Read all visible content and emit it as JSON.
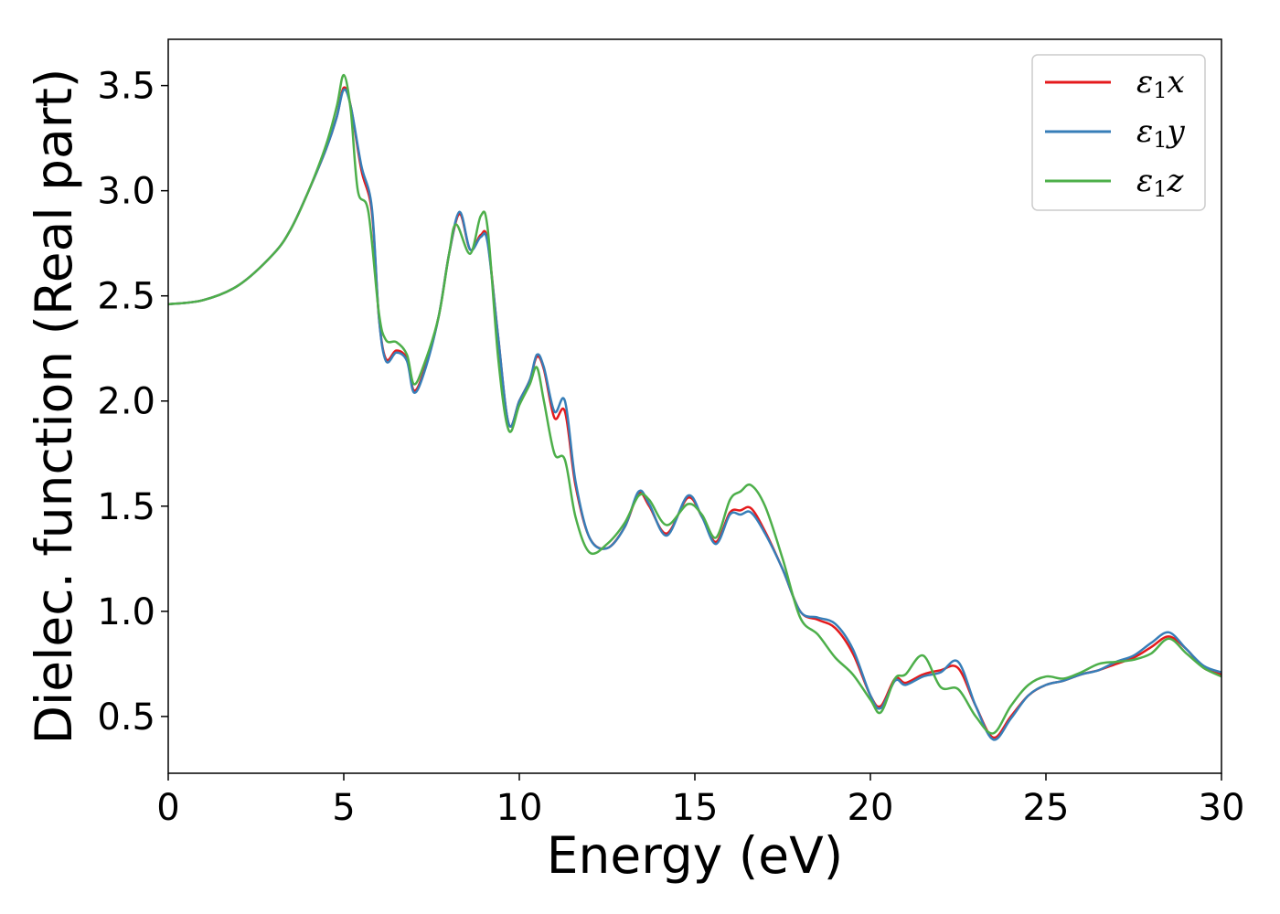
{
  "chart_data": {
    "type": "line",
    "title": "",
    "xlabel": "Energy (eV)",
    "ylabel": "Dielec. function (Real part)",
    "xlim": [
      0,
      30
    ],
    "ylim": [
      0.23,
      3.72
    ],
    "xticks": [
      0,
      5,
      10,
      15,
      20,
      25,
      30
    ],
    "yticks": [
      0.5,
      1.0,
      1.5,
      2.0,
      2.5,
      3.0,
      3.5
    ],
    "xtick_labels": [
      "0",
      "5",
      "10",
      "15",
      "20",
      "25",
      "30"
    ],
    "ytick_labels": [
      "0.5",
      "1.0",
      "1.5",
      "2.0",
      "2.5",
      "3.0",
      "3.5"
    ],
    "grid": false,
    "legend_position": "top-right",
    "series": [
      {
        "name": "ε1x",
        "legend": {
          "base": "ε",
          "sub": "1",
          "var": "x"
        },
        "color": "#e41a1c",
        "points": [
          [
            0,
            2.46
          ],
          [
            1,
            2.48
          ],
          [
            2,
            2.55
          ],
          [
            3,
            2.7
          ],
          [
            3.5,
            2.82
          ],
          [
            4,
            3.0
          ],
          [
            4.5,
            3.2
          ],
          [
            4.8,
            3.35
          ],
          [
            5.0,
            3.49
          ],
          [
            5.2,
            3.4
          ],
          [
            5.5,
            3.1
          ],
          [
            5.8,
            2.9
          ],
          [
            6.0,
            2.4
          ],
          [
            6.2,
            2.2
          ],
          [
            6.5,
            2.24
          ],
          [
            6.8,
            2.2
          ],
          [
            7.0,
            2.05
          ],
          [
            7.3,
            2.15
          ],
          [
            7.7,
            2.4
          ],
          [
            8.0,
            2.7
          ],
          [
            8.3,
            2.89
          ],
          [
            8.6,
            2.72
          ],
          [
            8.9,
            2.79
          ],
          [
            9.1,
            2.76
          ],
          [
            9.4,
            2.3
          ],
          [
            9.7,
            1.89
          ],
          [
            10.0,
            2.0
          ],
          [
            10.3,
            2.1
          ],
          [
            10.5,
            2.21
          ],
          [
            10.7,
            2.15
          ],
          [
            11.0,
            1.92
          ],
          [
            11.3,
            1.95
          ],
          [
            11.6,
            1.6
          ],
          [
            12.0,
            1.35
          ],
          [
            12.5,
            1.3
          ],
          [
            13.0,
            1.4
          ],
          [
            13.4,
            1.56
          ],
          [
            13.7,
            1.5
          ],
          [
            14.2,
            1.37
          ],
          [
            14.8,
            1.54
          ],
          [
            15.2,
            1.45
          ],
          [
            15.6,
            1.33
          ],
          [
            16.0,
            1.47
          ],
          [
            16.3,
            1.48
          ],
          [
            16.6,
            1.49
          ],
          [
            17.0,
            1.38
          ],
          [
            17.5,
            1.2
          ],
          [
            18.0,
            1.0
          ],
          [
            18.5,
            0.96
          ],
          [
            19.0,
            0.92
          ],
          [
            19.5,
            0.8
          ],
          [
            20.0,
            0.6
          ],
          [
            20.3,
            0.55
          ],
          [
            20.7,
            0.68
          ],
          [
            21.0,
            0.66
          ],
          [
            21.5,
            0.7
          ],
          [
            22.0,
            0.72
          ],
          [
            22.5,
            0.73
          ],
          [
            23.0,
            0.55
          ],
          [
            23.5,
            0.4
          ],
          [
            24.0,
            0.5
          ],
          [
            24.5,
            0.6
          ],
          [
            25.0,
            0.65
          ],
          [
            25.5,
            0.67
          ],
          [
            26.0,
            0.7
          ],
          [
            26.5,
            0.72
          ],
          [
            27.0,
            0.75
          ],
          [
            27.5,
            0.78
          ],
          [
            28.0,
            0.83
          ],
          [
            28.5,
            0.88
          ],
          [
            29.0,
            0.82
          ],
          [
            29.5,
            0.73
          ],
          [
            30.0,
            0.7
          ]
        ]
      },
      {
        "name": "ε1y",
        "legend": {
          "base": "ε",
          "sub": "1",
          "var": "y"
        },
        "color": "#377eb8",
        "points": [
          [
            0,
            2.46
          ],
          [
            1,
            2.48
          ],
          [
            2,
            2.55
          ],
          [
            3,
            2.7
          ],
          [
            3.5,
            2.82
          ],
          [
            4,
            3.0
          ],
          [
            4.5,
            3.2
          ],
          [
            4.8,
            3.35
          ],
          [
            5.0,
            3.48
          ],
          [
            5.2,
            3.4
          ],
          [
            5.5,
            3.12
          ],
          [
            5.8,
            2.92
          ],
          [
            6.0,
            2.4
          ],
          [
            6.2,
            2.19
          ],
          [
            6.5,
            2.23
          ],
          [
            6.8,
            2.19
          ],
          [
            7.0,
            2.04
          ],
          [
            7.3,
            2.14
          ],
          [
            7.7,
            2.4
          ],
          [
            8.0,
            2.7
          ],
          [
            8.3,
            2.9
          ],
          [
            8.6,
            2.72
          ],
          [
            8.9,
            2.78
          ],
          [
            9.1,
            2.75
          ],
          [
            9.4,
            2.3
          ],
          [
            9.7,
            1.89
          ],
          [
            10.0,
            2.0
          ],
          [
            10.3,
            2.1
          ],
          [
            10.5,
            2.22
          ],
          [
            10.7,
            2.16
          ],
          [
            11.0,
            1.95
          ],
          [
            11.3,
            2.0
          ],
          [
            11.6,
            1.62
          ],
          [
            12.0,
            1.35
          ],
          [
            12.5,
            1.3
          ],
          [
            13.0,
            1.4
          ],
          [
            13.4,
            1.57
          ],
          [
            13.7,
            1.51
          ],
          [
            14.2,
            1.36
          ],
          [
            14.8,
            1.55
          ],
          [
            15.2,
            1.45
          ],
          [
            15.6,
            1.32
          ],
          [
            16.0,
            1.46
          ],
          [
            16.3,
            1.46
          ],
          [
            16.6,
            1.47
          ],
          [
            17.0,
            1.37
          ],
          [
            17.5,
            1.2
          ],
          [
            18.0,
            1.0
          ],
          [
            18.5,
            0.97
          ],
          [
            19.0,
            0.94
          ],
          [
            19.5,
            0.82
          ],
          [
            20.0,
            0.6
          ],
          [
            20.3,
            0.54
          ],
          [
            20.7,
            0.67
          ],
          [
            21.0,
            0.65
          ],
          [
            21.5,
            0.69
          ],
          [
            22.0,
            0.71
          ],
          [
            22.5,
            0.76
          ],
          [
            23.0,
            0.55
          ],
          [
            23.5,
            0.39
          ],
          [
            24.0,
            0.49
          ],
          [
            24.5,
            0.6
          ],
          [
            25.0,
            0.65
          ],
          [
            25.5,
            0.67
          ],
          [
            26.0,
            0.7
          ],
          [
            26.5,
            0.72
          ],
          [
            27.0,
            0.76
          ],
          [
            27.5,
            0.79
          ],
          [
            28.0,
            0.85
          ],
          [
            28.5,
            0.9
          ],
          [
            29.0,
            0.82
          ],
          [
            29.5,
            0.74
          ],
          [
            30.0,
            0.71
          ]
        ]
      },
      {
        "name": "ε1z",
        "legend": {
          "base": "ε",
          "sub": "1",
          "var": "z"
        },
        "color": "#4daf4a",
        "points": [
          [
            0,
            2.46
          ],
          [
            1,
            2.48
          ],
          [
            2,
            2.55
          ],
          [
            3,
            2.7
          ],
          [
            3.5,
            2.82
          ],
          [
            4,
            3.0
          ],
          [
            4.5,
            3.22
          ],
          [
            4.8,
            3.4
          ],
          [
            5.0,
            3.55
          ],
          [
            5.2,
            3.38
          ],
          [
            5.4,
            3.0
          ],
          [
            5.7,
            2.9
          ],
          [
            6.0,
            2.42
          ],
          [
            6.2,
            2.29
          ],
          [
            6.5,
            2.28
          ],
          [
            6.8,
            2.22
          ],
          [
            7.0,
            2.08
          ],
          [
            7.3,
            2.18
          ],
          [
            7.7,
            2.4
          ],
          [
            8.0,
            2.7
          ],
          [
            8.2,
            2.84
          ],
          [
            8.6,
            2.7
          ],
          [
            8.9,
            2.88
          ],
          [
            9.1,
            2.82
          ],
          [
            9.4,
            2.2
          ],
          [
            9.7,
            1.86
          ],
          [
            10.0,
            1.98
          ],
          [
            10.3,
            2.08
          ],
          [
            10.5,
            2.16
          ],
          [
            10.7,
            2.0
          ],
          [
            11.0,
            1.75
          ],
          [
            11.3,
            1.72
          ],
          [
            11.6,
            1.45
          ],
          [
            12.0,
            1.28
          ],
          [
            12.5,
            1.32
          ],
          [
            13.0,
            1.42
          ],
          [
            13.4,
            1.55
          ],
          [
            13.7,
            1.53
          ],
          [
            14.2,
            1.41
          ],
          [
            14.8,
            1.51
          ],
          [
            15.2,
            1.46
          ],
          [
            15.6,
            1.35
          ],
          [
            16.0,
            1.53
          ],
          [
            16.3,
            1.57
          ],
          [
            16.6,
            1.6
          ],
          [
            17.0,
            1.5
          ],
          [
            17.5,
            1.25
          ],
          [
            18.0,
            0.97
          ],
          [
            18.5,
            0.89
          ],
          [
            19.0,
            0.78
          ],
          [
            19.5,
            0.7
          ],
          [
            20.0,
            0.58
          ],
          [
            20.3,
            0.52
          ],
          [
            20.7,
            0.68
          ],
          [
            21.0,
            0.7
          ],
          [
            21.5,
            0.79
          ],
          [
            22.0,
            0.64
          ],
          [
            22.5,
            0.63
          ],
          [
            23.0,
            0.5
          ],
          [
            23.5,
            0.42
          ],
          [
            24.0,
            0.55
          ],
          [
            24.5,
            0.65
          ],
          [
            25.0,
            0.69
          ],
          [
            25.5,
            0.68
          ],
          [
            26.0,
            0.71
          ],
          [
            26.5,
            0.75
          ],
          [
            27.0,
            0.76
          ],
          [
            27.5,
            0.77
          ],
          [
            28.0,
            0.8
          ],
          [
            28.5,
            0.87
          ],
          [
            29.0,
            0.8
          ],
          [
            29.5,
            0.73
          ],
          [
            30.0,
            0.69
          ]
        ]
      }
    ]
  }
}
